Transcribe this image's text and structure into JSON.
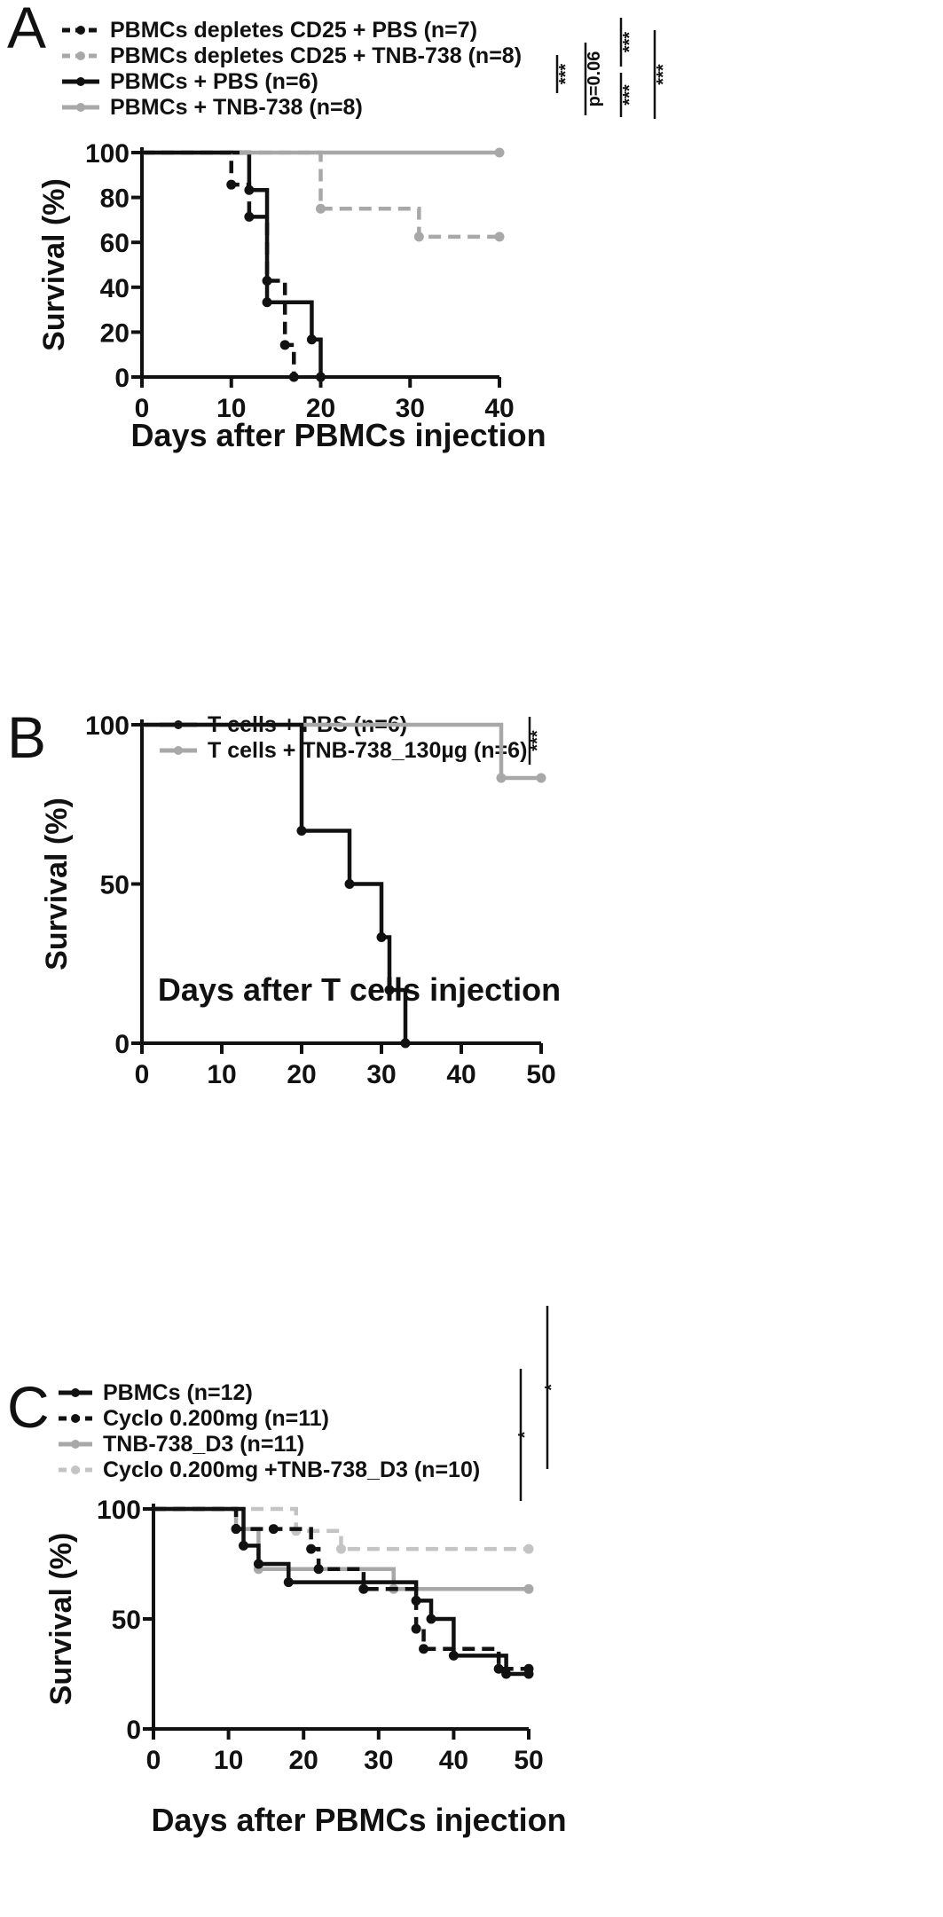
{
  "chart_data": [
    {
      "type": "line",
      "panel_label": "A",
      "xlabel": "Days after PBMCs injection",
      "ylabel": "Survival (%)",
      "xlim": [
        0,
        40
      ],
      "ylim": [
        0,
        100
      ],
      "xticks": [
        0,
        10,
        20,
        30,
        40
      ],
      "yticks": [
        0,
        20,
        40,
        60,
        80,
        100
      ],
      "legend": "top-left",
      "grid": false,
      "series": [
        {
          "name": "PBMCs depletes CD25 + PBS (n=7)",
          "color": "#111111",
          "dashed": true,
          "x": [
            0,
            10,
            12,
            14,
            16,
            17
          ],
          "y": [
            100,
            85.7,
            71.4,
            42.9,
            14.3,
            0
          ]
        },
        {
          "name": "PBMCs depletes CD25 + TNB-738 (n=8)",
          "color": "#a8a8a8",
          "dashed": true,
          "x": [
            0,
            20,
            31,
            40
          ],
          "y": [
            100,
            75,
            62.5,
            62.5
          ]
        },
        {
          "name": "PBMCs + PBS (n=6)",
          "color": "#111111",
          "dashed": false,
          "x": [
            0,
            12,
            14,
            19,
            20
          ],
          "y": [
            100,
            83.3,
            33.3,
            16.7,
            0
          ]
        },
        {
          "name": "PBMCs + TNB-738 (n=8)",
          "color": "#a8a8a8",
          "dashed": false,
          "x": [
            0,
            40
          ],
          "y": [
            100,
            100
          ]
        }
      ],
      "significance": [
        {
          "label": "***",
          "pair": [
            1,
            2
          ]
        },
        {
          "label": "p=0.06",
          "pair": [
            0,
            2
          ]
        },
        {
          "label": "***",
          "pair": [
            0,
            1
          ]
        },
        {
          "label": "***",
          "pair": [
            2,
            3
          ]
        },
        {
          "label": "***",
          "pair": [
            0,
            3
          ]
        }
      ]
    },
    {
      "type": "line",
      "panel_label": "B",
      "xlabel": "Days after T cells injection",
      "ylabel": "Survival (%)",
      "xlim": [
        0,
        50
      ],
      "ylim": [
        0,
        100
      ],
      "xticks": [
        0,
        10,
        20,
        30,
        40,
        50
      ],
      "yticks": [
        0,
        50,
        100
      ],
      "legend": "top-center",
      "grid": false,
      "series": [
        {
          "name": "T cells + PBS (n=6)",
          "color": "#111111",
          "dashed": false,
          "x": [
            0,
            20,
            26,
            30,
            31,
            33
          ],
          "y": [
            100,
            66.7,
            50,
            33.3,
            16.7,
            0
          ]
        },
        {
          "name": "T cells + TNB-738_130µg (n=6)",
          "color": "#a8a8a8",
          "dashed": false,
          "x": [
            0,
            45,
            50
          ],
          "y": [
            100,
            83.3,
            83.3
          ]
        }
      ],
      "significance": [
        {
          "label": "***",
          "pair": [
            0,
            1
          ]
        }
      ]
    },
    {
      "type": "line",
      "panel_label": "C",
      "xlabel": "Days after PBMCs injection",
      "ylabel": "Survival (%)",
      "xlim": [
        0,
        50
      ],
      "ylim": [
        0,
        100
      ],
      "xticks": [
        0,
        10,
        20,
        30,
        40,
        50
      ],
      "yticks": [
        0,
        50,
        100
      ],
      "legend": "top-left",
      "grid": false,
      "series": [
        {
          "name": "PBMCs (n=12)",
          "color": "#111111",
          "dashed": false,
          "x": [
            0,
            12,
            14,
            18,
            35,
            37,
            40,
            47,
            50
          ],
          "y": [
            100,
            83.3,
            75,
            66.7,
            58.3,
            50,
            33.3,
            25,
            25
          ]
        },
        {
          "name": "Cyclo 0.200mg (n=11)",
          "color": "#111111",
          "dashed": true,
          "x": [
            0,
            11,
            16,
            21,
            22,
            28,
            35,
            36,
            46,
            50
          ],
          "y": [
            100,
            90.9,
            90.9,
            81.8,
            72.7,
            63.6,
            45.5,
            36.4,
            27.3,
            27.3
          ]
        },
        {
          "name": "TNB-738_D3 (n=11)",
          "color": "#a8a8a8",
          "dashed": false,
          "x": [
            0,
            11,
            14,
            32,
            50
          ],
          "y": [
            100,
            90.9,
            72.7,
            63.6,
            63.6
          ]
        },
        {
          "name": "Cyclo 0.200mg +TNB-738_D3 (n=10)",
          "color": "#c4c4c4",
          "dashed": true,
          "x": [
            0,
            19,
            25,
            50
          ],
          "y": [
            100,
            90,
            81.8,
            81.8
          ]
        }
      ],
      "significance": [
        {
          "label": "*",
          "pair": [
            1,
            2
          ]
        },
        {
          "label": "*",
          "pair": [
            0,
            3
          ]
        }
      ]
    }
  ]
}
